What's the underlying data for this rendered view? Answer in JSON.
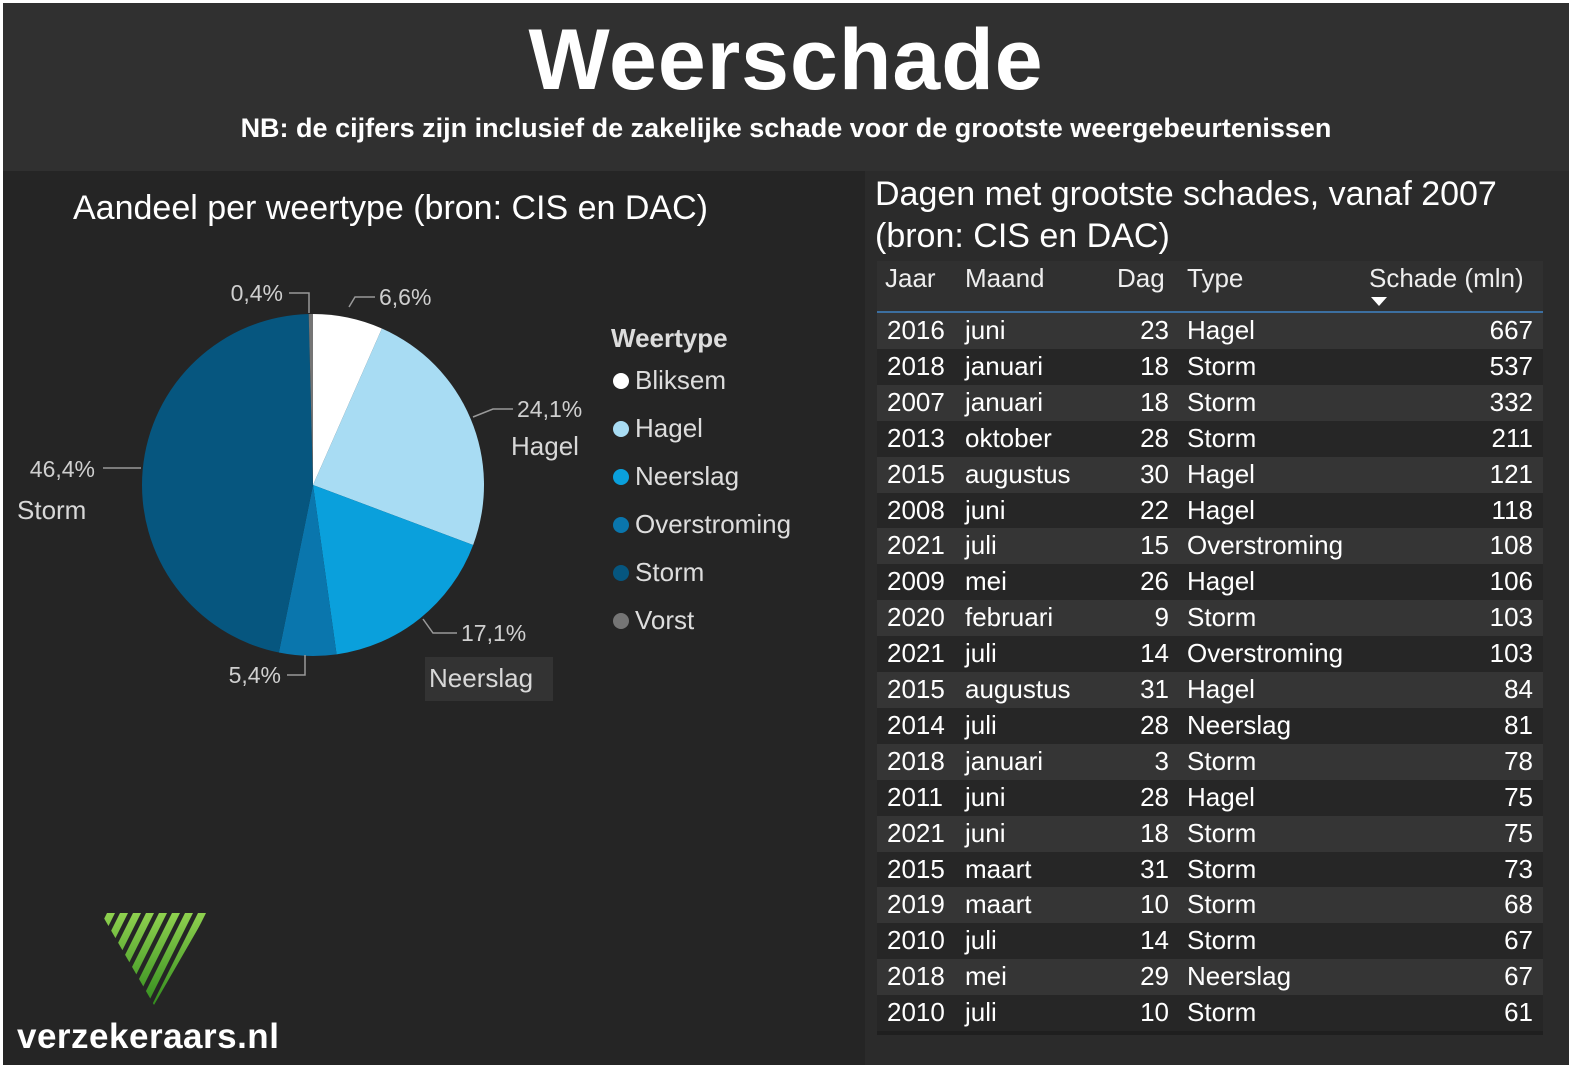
{
  "header": {
    "title": "Weerschade",
    "subtitle": "NB: de cijfers zijn inclusief de zakelijke schade voor de grootste weergebeurtenissen"
  },
  "chart_data": [
    {
      "type": "pie",
      "title": "Aandeel per weertype (bron: CIS en DAC)",
      "legend_title": "Weertype",
      "legend_position": "right",
      "slices": [
        {
          "name": "Bliksem",
          "value": 6.6,
          "label": "6,6%",
          "color": "#ffffff",
          "show_name": false
        },
        {
          "name": "Hagel",
          "value": 24.1,
          "label": "24,1%",
          "color": "#a8dcf3",
          "show_name": true
        },
        {
          "name": "Neerslag",
          "value": 17.1,
          "label": "17,1%",
          "color": "#0aa0dc",
          "show_name": true
        },
        {
          "name": "Overstroming",
          "value": 5.4,
          "label": "5,4%",
          "color": "#0a76ad",
          "show_name": false
        },
        {
          "name": "Storm",
          "value": 46.4,
          "label": "46,4%",
          "color": "#06567f",
          "show_name": true
        },
        {
          "name": "Vorst",
          "value": 0.4,
          "label": "0,4%",
          "color": "#757575",
          "show_name": false
        }
      ]
    },
    {
      "type": "table",
      "title": "Dagen met grootste schades, vanaf 2007 (bron: CIS en DAC)",
      "columns": [
        "Jaar",
        "Maand",
        "Dag",
        "Type",
        "Schade (mln)"
      ],
      "sort": {
        "column": "Schade (mln)",
        "direction": "desc"
      },
      "rows": [
        [
          "2016",
          "juni",
          "23",
          "Hagel",
          "667"
        ],
        [
          "2018",
          "januari",
          "18",
          "Storm",
          "537"
        ],
        [
          "2007",
          "januari",
          "18",
          "Storm",
          "332"
        ],
        [
          "2013",
          "oktober",
          "28",
          "Storm",
          "211"
        ],
        [
          "2015",
          "augustus",
          "30",
          "Hagel",
          "121"
        ],
        [
          "2008",
          "juni",
          "22",
          "Hagel",
          "118"
        ],
        [
          "2021",
          "juli",
          "15",
          "Overstroming",
          "108"
        ],
        [
          "2009",
          "mei",
          "26",
          "Hagel",
          "106"
        ],
        [
          "2020",
          "februari",
          "9",
          "Storm",
          "103"
        ],
        [
          "2021",
          "juli",
          "14",
          "Overstroming",
          "103"
        ],
        [
          "2015",
          "augustus",
          "31",
          "Hagel",
          "84"
        ],
        [
          "2014",
          "juli",
          "28",
          "Neerslag",
          "81"
        ],
        [
          "2018",
          "januari",
          "3",
          "Storm",
          "78"
        ],
        [
          "2011",
          "juni",
          "28",
          "Hagel",
          "75"
        ],
        [
          "2021",
          "juni",
          "18",
          "Storm",
          "75"
        ],
        [
          "2015",
          "maart",
          "31",
          "Storm",
          "73"
        ],
        [
          "2019",
          "maart",
          "10",
          "Storm",
          "68"
        ],
        [
          "2010",
          "juli",
          "14",
          "Storm",
          "67"
        ],
        [
          "2018",
          "mei",
          "29",
          "Neerslag",
          "67"
        ],
        [
          "2010",
          "juli",
          "10",
          "Storm",
          "61"
        ]
      ]
    }
  ],
  "branding": {
    "logo_text": "verzekeraars.nl",
    "logo_icon": "green-triangle-stripes-icon",
    "logo_color": "#5cb82e"
  }
}
